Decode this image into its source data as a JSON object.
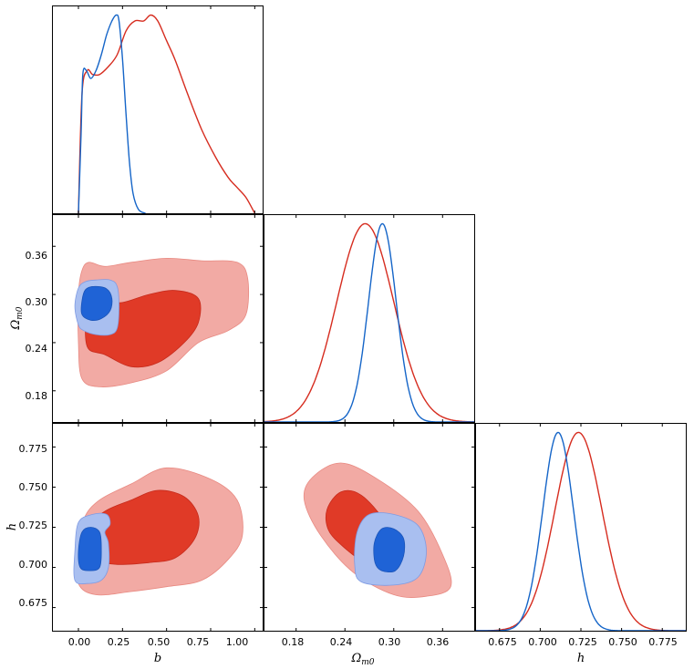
{
  "colors": {
    "red_line": "#d62c1f",
    "blue_line": "#1565c8",
    "red_outer": "#f2aaa4",
    "red_inner": "#e03a27",
    "blue_outer": "#a9bff0",
    "blue_inner": "#1f63d6"
  },
  "chart_data": {
    "type": "corner",
    "parameters": [
      {
        "name": "b",
        "label": "b",
        "range": [
          -0.15,
          1.05
        ],
        "ticks": [
          0.0,
          0.25,
          0.5,
          0.75,
          1.0
        ],
        "tick_labels": [
          "0.00",
          "0.25",
          "0.50",
          "0.75",
          "1.00"
        ]
      },
      {
        "name": "Omega_m0",
        "label_main": "Ω",
        "label_sub": "m0",
        "range": [
          0.14,
          0.4
        ],
        "ticks": [
          0.18,
          0.24,
          0.3,
          0.36
        ],
        "tick_labels": [
          "0.18",
          "0.24",
          "0.30",
          "0.36"
        ]
      },
      {
        "name": "h",
        "label": "h",
        "range": [
          0.66,
          0.79
        ],
        "ticks": [
          0.675,
          0.7,
          0.725,
          0.75,
          0.775
        ],
        "tick_labels": [
          "0.675",
          "0.700",
          "0.725",
          "0.750",
          "0.775"
        ]
      }
    ],
    "series": [
      {
        "name": "red",
        "marginals": {
          "b": {
            "x": [
              0.0,
              0.02,
              0.05,
              0.08,
              0.12,
              0.17,
              0.22,
              0.27,
              0.32,
              0.37,
              0.41,
              0.45,
              0.5,
              0.55,
              0.62,
              0.7,
              0.78,
              0.85,
              0.9,
              0.95,
              1.0
            ],
            "y": [
              0.0,
              0.6,
              0.72,
              0.7,
              0.7,
              0.74,
              0.8,
              0.92,
              0.97,
              0.97,
              1.0,
              0.97,
              0.87,
              0.77,
              0.6,
              0.42,
              0.28,
              0.18,
              0.13,
              0.08,
              0.0
            ]
          },
          "Omega_m0": {
            "mean": 0.265,
            "sd": 0.035
          },
          "h": {
            "mean": 0.7235,
            "sd": 0.0145
          }
        },
        "contours": {
          "b_Omega_m0": {
            "outer": [
              [
                0.02,
                0.195
              ],
              [
                0.12,
                0.185
              ],
              [
                0.3,
                0.19
              ],
              [
                0.5,
                0.205
              ],
              [
                0.68,
                0.24
              ],
              [
                0.85,
                0.255
              ],
              [
                0.95,
                0.275
              ],
              [
                0.96,
                0.32
              ],
              [
                0.9,
                0.34
              ],
              [
                0.7,
                0.342
              ],
              [
                0.5,
                0.345
              ],
              [
                0.3,
                0.34
              ],
              [
                0.15,
                0.335
              ],
              [
                0.06,
                0.34
              ],
              [
                0.02,
                0.33
              ],
              [
                0.0,
                0.3
              ],
              [
                0.0,
                0.24
              ]
            ],
            "inner": [
              [
                0.05,
                0.235
              ],
              [
                0.15,
                0.225
              ],
              [
                0.3,
                0.21
              ],
              [
                0.45,
                0.215
              ],
              [
                0.6,
                0.24
              ],
              [
                0.68,
                0.265
              ],
              [
                0.68,
                0.295
              ],
              [
                0.55,
                0.305
              ],
              [
                0.4,
                0.3
              ],
              [
                0.25,
                0.29
              ],
              [
                0.12,
                0.29
              ],
              [
                0.05,
                0.28
              ]
            ]
          },
          "b_h": {
            "outer": [
              [
                0.0,
                0.69
              ],
              [
                0.1,
                0.683
              ],
              [
                0.3,
                0.685
              ],
              [
                0.5,
                0.688
              ],
              [
                0.7,
                0.692
              ],
              [
                0.85,
                0.705
              ],
              [
                0.93,
                0.72
              ],
              [
                0.9,
                0.742
              ],
              [
                0.75,
                0.755
              ],
              [
                0.5,
                0.762
              ],
              [
                0.3,
                0.752
              ],
              [
                0.12,
                0.742
              ],
              [
                0.03,
                0.73
              ],
              [
                0.0,
                0.71
              ]
            ],
            "inner": [
              [
                0.05,
                0.707
              ],
              [
                0.2,
                0.702
              ],
              [
                0.4,
                0.703
              ],
              [
                0.55,
                0.706
              ],
              [
                0.66,
                0.718
              ],
              [
                0.68,
                0.732
              ],
              [
                0.6,
                0.744
              ],
              [
                0.45,
                0.748
              ],
              [
                0.3,
                0.742
              ],
              [
                0.15,
                0.735
              ],
              [
                0.06,
                0.725
              ]
            ]
          },
          "Omega_m0_h": {
            "outer": [
              [
                0.2,
                0.756
              ],
              [
                0.235,
                0.765
              ],
              [
                0.28,
                0.755
              ],
              [
                0.33,
                0.735
              ],
              [
                0.36,
                0.708
              ],
              [
                0.37,
                0.688
              ],
              [
                0.34,
                0.682
              ],
              [
                0.3,
                0.683
              ],
              [
                0.25,
                0.697
              ],
              [
                0.21,
                0.72
              ],
              [
                0.19,
                0.742
              ]
            ],
            "inner": [
              [
                0.218,
                0.736
              ],
              [
                0.235,
                0.747
              ],
              [
                0.26,
                0.745
              ],
              [
                0.29,
                0.728
              ],
              [
                0.31,
                0.707
              ],
              [
                0.29,
                0.7
              ],
              [
                0.265,
                0.703
              ],
              [
                0.24,
                0.712
              ],
              [
                0.22,
                0.723
              ]
            ]
          }
        }
      },
      {
        "name": "blue",
        "marginals": {
          "b": {
            "x": [
              0.0,
              0.015,
              0.025,
              0.045,
              0.07,
              0.1,
              0.13,
              0.16,
              0.19,
              0.215,
              0.23,
              0.25,
              0.27,
              0.29,
              0.31,
              0.34,
              0.38
            ],
            "y": [
              0.0,
              0.4,
              0.7,
              0.72,
              0.68,
              0.72,
              0.8,
              0.9,
              0.97,
              1.0,
              0.97,
              0.78,
              0.5,
              0.25,
              0.1,
              0.02,
              0.0
            ]
          },
          "Omega_m0": {
            "mean": 0.286,
            "sd": 0.017
          },
          "h": {
            "mean": 0.711,
            "sd": 0.0095
          }
        },
        "contours": {
          "b_Omega_m0": {
            "outer": [
              [
                0.0,
                0.262
              ],
              [
                0.03,
                0.255
              ],
              [
                0.1,
                0.25
              ],
              [
                0.18,
                0.25
              ],
              [
                0.22,
                0.258
              ],
              [
                0.23,
                0.285
              ],
              [
                0.22,
                0.31
              ],
              [
                0.18,
                0.318
              ],
              [
                0.1,
                0.318
              ],
              [
                0.04,
                0.316
              ],
              [
                0.0,
                0.308
              ],
              [
                -0.02,
                0.285
              ]
            ],
            "inner": [
              [
                0.02,
                0.275
              ],
              [
                0.07,
                0.268
              ],
              [
                0.13,
                0.27
              ],
              [
                0.18,
                0.28
              ],
              [
                0.19,
                0.295
              ],
              [
                0.16,
                0.307
              ],
              [
                0.09,
                0.31
              ],
              [
                0.04,
                0.306
              ],
              [
                0.02,
                0.292
              ]
            ]
          },
          "b_h": {
            "outer": [
              [
                -0.02,
                0.692
              ],
              [
                0.05,
                0.69
              ],
              [
                0.13,
                0.692
              ],
              [
                0.17,
                0.7
              ],
              [
                0.17,
                0.715
              ],
              [
                0.15,
                0.722
              ],
              [
                0.18,
                0.727
              ],
              [
                0.16,
                0.733
              ],
              [
                0.08,
                0.733
              ],
              [
                0.0,
                0.728
              ],
              [
                -0.02,
                0.71
              ]
            ],
            "inner": [
              [
                0.01,
                0.7
              ],
              [
                0.06,
                0.698
              ],
              [
                0.12,
                0.7
              ],
              [
                0.13,
                0.712
              ],
              [
                0.12,
                0.722
              ],
              [
                0.07,
                0.725
              ],
              [
                0.02,
                0.722
              ],
              [
                0.0,
                0.71
              ]
            ]
          },
          "Omega_m0_h": {
            "outer": [
              [
                0.26,
                0.691
              ],
              [
                0.3,
                0.689
              ],
              [
                0.33,
                0.694
              ],
              [
                0.34,
                0.71
              ],
              [
                0.33,
                0.726
              ],
              [
                0.3,
                0.733
              ],
              [
                0.27,
                0.733
              ],
              [
                0.255,
                0.722
              ],
              [
                0.252,
                0.702
              ]
            ],
            "inner": [
              [
                0.285,
                0.698
              ],
              [
                0.302,
                0.698
              ],
              [
                0.312,
                0.707
              ],
              [
                0.312,
                0.718
              ],
              [
                0.3,
                0.724
              ],
              [
                0.285,
                0.724
              ],
              [
                0.276,
                0.715
              ],
              [
                0.277,
                0.703
              ]
            ]
          }
        }
      }
    ]
  }
}
